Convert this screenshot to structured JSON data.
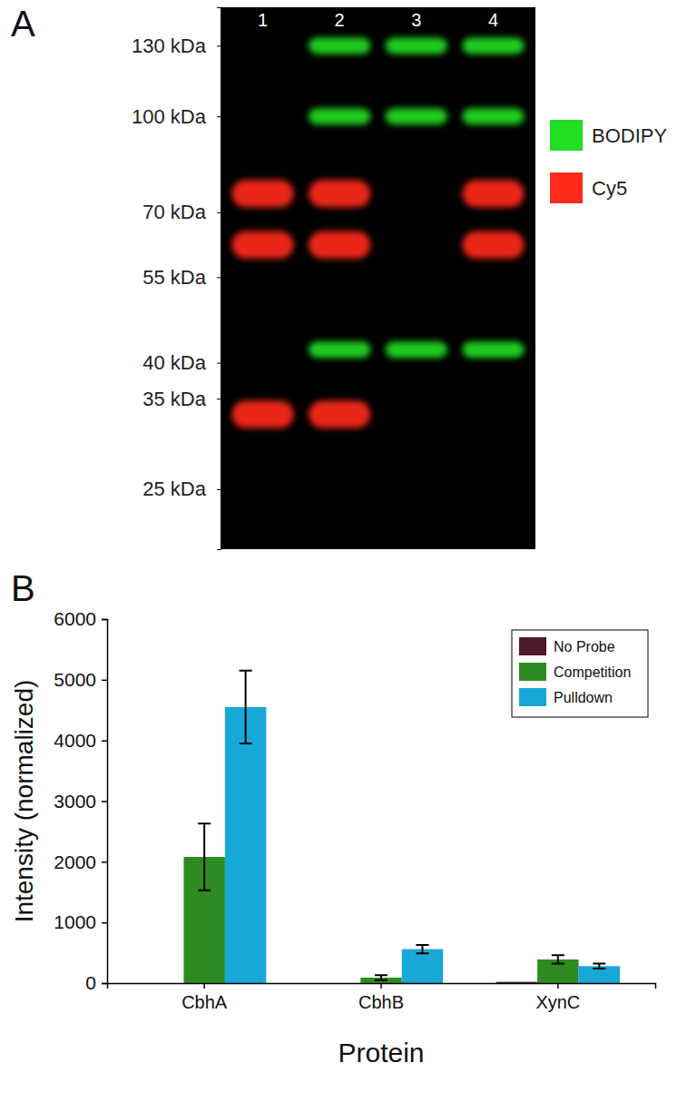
{
  "chart_data": [
    {
      "type": "gel",
      "title": "A",
      "categories": [
        "1",
        "2",
        "3",
        "4"
      ],
      "log": "y",
      "ylim": [
        150,
        20
      ],
      "yticks": [
        {
          "value": 130,
          "label": "130 kDa"
        },
        {
          "value": 100,
          "label": "100 kDa"
        },
        {
          "value": 70,
          "label": "70 kDa"
        },
        {
          "value": 55,
          "label": "55 kDa"
        },
        {
          "value": 40,
          "label": "40 kDa"
        },
        {
          "value": 35,
          "label": "35 kDa"
        },
        {
          "value": 25,
          "label": "25 kDa"
        }
      ],
      "legend": "right",
      "series": [
        {
          "name": "BODIPY",
          "color": "#22dd22",
          "values": [
            [],
            [
              130,
              100,
              42
            ],
            [
              130,
              100,
              42
            ],
            [
              130,
              100,
              42
            ]
          ]
        },
        {
          "name": "Cy5",
          "color": "#ff2a1a",
          "values": [
            [
              75,
              62,
              33
            ],
            [
              75,
              62,
              33
            ],
            [],
            [
              75,
              62
            ]
          ]
        }
      ]
    },
    {
      "type": "bar",
      "title": "B",
      "xlabel": "Protein",
      "ylabel": "Intensity (normalized)",
      "categories": [
        "CbhA",
        "CbhB",
        "XynC"
      ],
      "ylim": [
        0,
        6000
      ],
      "yticks": [
        0,
        1000,
        2000,
        3000,
        4000,
        5000,
        6000
      ],
      "legend": "upper right",
      "series": [
        {
          "name": "No Probe",
          "color": "#4d1a2a",
          "values": [
            0,
            0,
            20
          ]
        },
        {
          "name": "Competition",
          "color": "#2e8b22",
          "values": [
            2080,
            90,
            390
          ],
          "errors": [
            550,
            40,
            70
          ]
        },
        {
          "name": "Pulldown",
          "color": "#18a8d8",
          "values": [
            4550,
            560,
            280
          ],
          "errors": [
            600,
            70,
            40
          ]
        }
      ]
    }
  ]
}
